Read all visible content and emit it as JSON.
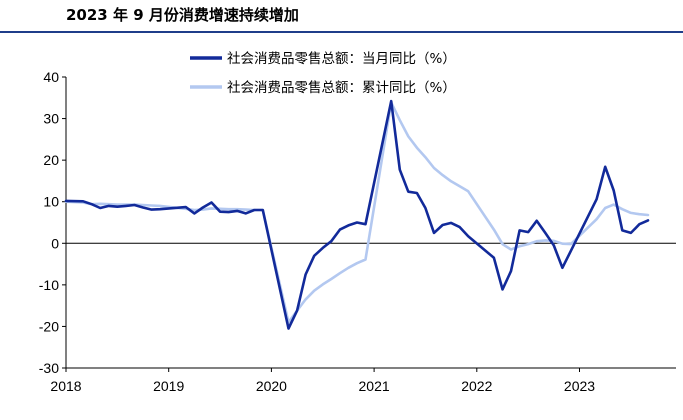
{
  "title": "2023 年 9 月份消费增速持续增加",
  "colors": {
    "accent": "#1f3d8a",
    "monthly": "#122a9a",
    "cumulative": "#b3c8f0"
  },
  "chart_data": {
    "type": "line",
    "title": "",
    "xlabel": "",
    "ylabel": "",
    "x_ticks": [
      "2018",
      "2019",
      "2020",
      "2021",
      "2022",
      "2023"
    ],
    "y_ticks": [
      "40",
      "30",
      "20",
      "10",
      "0",
      "-10",
      "-20",
      "-30"
    ],
    "ylim": [
      -30,
      40
    ],
    "xlim": [
      "2018-01",
      "2023-09"
    ],
    "grid": false,
    "legend_position": "top-right",
    "series": [
      {
        "name": "社会消费品零售总额：当月同比（%）",
        "points": [
          [
            "2018-01",
            10.2
          ],
          [
            "2018-03",
            10.1
          ],
          [
            "2018-04",
            9.4
          ],
          [
            "2018-05",
            8.5
          ],
          [
            "2018-06",
            9.0
          ],
          [
            "2018-07",
            8.8
          ],
          [
            "2018-08",
            9.0
          ],
          [
            "2018-09",
            9.2
          ],
          [
            "2018-10",
            8.6
          ],
          [
            "2018-11",
            8.1
          ],
          [
            "2018-12",
            8.2
          ],
          [
            "2019-03",
            8.7
          ],
          [
            "2019-04",
            7.2
          ],
          [
            "2019-05",
            8.6
          ],
          [
            "2019-06",
            9.8
          ],
          [
            "2019-07",
            7.6
          ],
          [
            "2019-08",
            7.5
          ],
          [
            "2019-09",
            7.8
          ],
          [
            "2019-10",
            7.2
          ],
          [
            "2019-11",
            8.0
          ],
          [
            "2019-12",
            8.0
          ],
          [
            "2020-03",
            -20.5
          ],
          [
            "2020-04",
            -16.2
          ],
          [
            "2020-05",
            -7.5
          ],
          [
            "2020-06",
            -3.0
          ],
          [
            "2020-07",
            -1.1
          ],
          [
            "2020-08",
            0.5
          ],
          [
            "2020-09",
            3.3
          ],
          [
            "2020-10",
            4.3
          ],
          [
            "2020-11",
            5.0
          ],
          [
            "2020-12",
            4.6
          ],
          [
            "2021-03",
            34.2
          ],
          [
            "2021-04",
            17.7
          ],
          [
            "2021-05",
            12.4
          ],
          [
            "2021-06",
            12.1
          ],
          [
            "2021-07",
            8.5
          ],
          [
            "2021-08",
            2.5
          ],
          [
            "2021-09",
            4.4
          ],
          [
            "2021-10",
            4.9
          ],
          [
            "2021-11",
            3.9
          ],
          [
            "2021-12",
            1.7
          ],
          [
            "2022-03",
            -3.5
          ],
          [
            "2022-04",
            -11.1
          ],
          [
            "2022-05",
            -6.7
          ],
          [
            "2022-06",
            3.1
          ],
          [
            "2022-07",
            2.7
          ],
          [
            "2022-08",
            5.4
          ],
          [
            "2022-09",
            2.5
          ],
          [
            "2022-10",
            -0.5
          ],
          [
            "2022-11",
            -5.9
          ],
          [
            "2022-12",
            -1.8
          ],
          [
            "2023-03",
            10.6
          ],
          [
            "2023-04",
            18.4
          ],
          [
            "2023-05",
            12.7
          ],
          [
            "2023-06",
            3.1
          ],
          [
            "2023-07",
            2.5
          ],
          [
            "2023-08",
            4.6
          ],
          [
            "2023-09",
            5.5
          ]
        ]
      },
      {
        "name": "社会消费品零售总额：累计同比（%）",
        "points": [
          [
            "2018-01",
            10.0
          ],
          [
            "2018-03",
            9.8
          ],
          [
            "2018-04",
            9.4
          ],
          [
            "2018-05",
            9.5
          ],
          [
            "2018-06",
            9.4
          ],
          [
            "2018-07",
            9.3
          ],
          [
            "2018-08",
            9.3
          ],
          [
            "2018-09",
            9.3
          ],
          [
            "2018-10",
            9.2
          ],
          [
            "2018-11",
            9.1
          ],
          [
            "2018-12",
            9.0
          ],
          [
            "2019-03",
            8.3
          ],
          [
            "2019-04",
            8.0
          ],
          [
            "2019-05",
            8.1
          ],
          [
            "2019-06",
            8.4
          ],
          [
            "2019-07",
            8.3
          ],
          [
            "2019-08",
            8.2
          ],
          [
            "2019-09",
            8.2
          ],
          [
            "2019-10",
            8.1
          ],
          [
            "2019-11",
            8.0
          ],
          [
            "2019-12",
            8.0
          ],
          [
            "2020-03",
            -19.0
          ],
          [
            "2020-04",
            -16.2
          ],
          [
            "2020-05",
            -13.5
          ],
          [
            "2020-06",
            -11.4
          ],
          [
            "2020-07",
            -9.9
          ],
          [
            "2020-08",
            -8.6
          ],
          [
            "2020-09",
            -7.2
          ],
          [
            "2020-10",
            -5.9
          ],
          [
            "2020-11",
            -4.8
          ],
          [
            "2020-12",
            -3.9
          ],
          [
            "2021-03",
            33.9
          ],
          [
            "2021-04",
            29.6
          ],
          [
            "2021-05",
            25.7
          ],
          [
            "2021-06",
            23.0
          ],
          [
            "2021-07",
            20.7
          ],
          [
            "2021-08",
            18.1
          ],
          [
            "2021-09",
            16.4
          ],
          [
            "2021-10",
            14.9
          ],
          [
            "2021-11",
            13.7
          ],
          [
            "2021-12",
            12.5
          ],
          [
            "2022-03",
            3.3
          ],
          [
            "2022-04",
            -0.2
          ],
          [
            "2022-05",
            -1.5
          ],
          [
            "2022-06",
            -0.7
          ],
          [
            "2022-07",
            -0.2
          ],
          [
            "2022-08",
            0.5
          ],
          [
            "2022-09",
            0.7
          ],
          [
            "2022-10",
            0.6
          ],
          [
            "2022-11",
            -0.1
          ],
          [
            "2022-12",
            -0.2
          ],
          [
            "2023-03",
            5.8
          ],
          [
            "2023-04",
            8.5
          ],
          [
            "2023-05",
            9.3
          ],
          [
            "2023-06",
            8.2
          ],
          [
            "2023-07",
            7.3
          ],
          [
            "2023-08",
            7.0
          ],
          [
            "2023-09",
            6.8
          ]
        ]
      }
    ]
  }
}
